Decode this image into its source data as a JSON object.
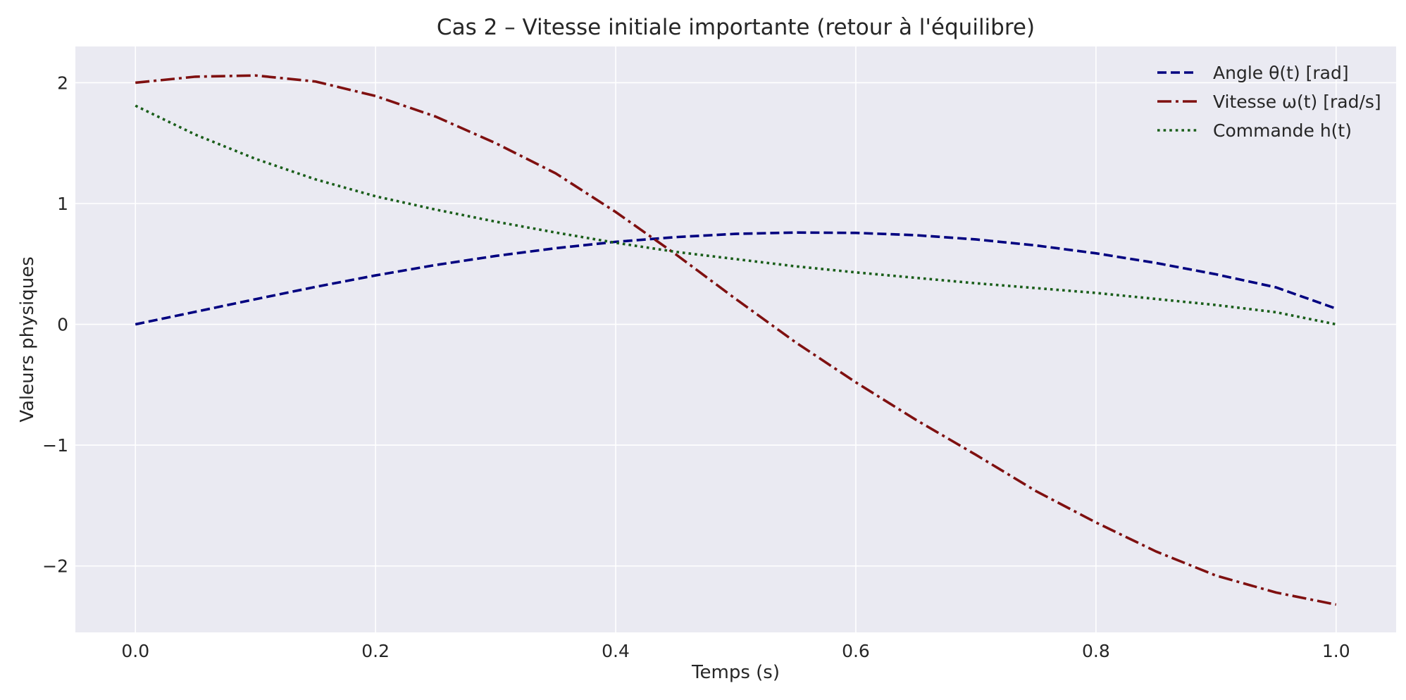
{
  "chart_data": {
    "type": "line",
    "title": "Cas 2 – Vitesse initiale importante (retour à l'équilibre)",
    "xlabel": "Temps (s)",
    "ylabel": "Valeurs physiques",
    "xlim": [
      -0.05,
      1.05
    ],
    "ylim": [
      -2.55,
      2.3
    ],
    "xticks": [
      0.0,
      0.2,
      0.4,
      0.6,
      0.8,
      1.0
    ],
    "xtick_labels": [
      "0.0",
      "0.2",
      "0.4",
      "0.6",
      "0.8",
      "1.0"
    ],
    "yticks": [
      -2,
      -1,
      0,
      1,
      2
    ],
    "ytick_labels": [
      "−2",
      "−1",
      "0",
      "1",
      "2"
    ],
    "grid": true,
    "legend_position": "top-right",
    "x": [
      0.0,
      0.05,
      0.1,
      0.15,
      0.2,
      0.25,
      0.3,
      0.35,
      0.4,
      0.45,
      0.5,
      0.55,
      0.6,
      0.65,
      0.7,
      0.75,
      0.8,
      0.85,
      0.9,
      0.95,
      1.0
    ],
    "series": [
      {
        "name": "Angle θ(t) [rad]",
        "color": "#000080",
        "dash": "dashed",
        "values": [
          0.0,
          0.104,
          0.208,
          0.31,
          0.405,
          0.491,
          0.566,
          0.63,
          0.683,
          0.722,
          0.749,
          0.76,
          0.757,
          0.738,
          0.703,
          0.653,
          0.588,
          0.508,
          0.414,
          0.306,
          0.13
        ]
      },
      {
        "name": "Vitesse ω(t) [rad/s]",
        "color": "#7f1010",
        "dash": "dashdot",
        "values": [
          2.0,
          2.05,
          2.06,
          2.01,
          1.89,
          1.72,
          1.5,
          1.25,
          0.93,
          0.58,
          0.21,
          -0.15,
          -0.48,
          -0.79,
          -1.08,
          -1.38,
          -1.64,
          -1.88,
          -2.08,
          -2.22,
          -2.32
        ]
      },
      {
        "name": "Commande h(t)",
        "color": "#1a5e1a",
        "dash": "dotted",
        "values": [
          1.81,
          1.57,
          1.37,
          1.2,
          1.06,
          0.95,
          0.85,
          0.76,
          0.675,
          0.6,
          0.54,
          0.48,
          0.43,
          0.385,
          0.34,
          0.3,
          0.26,
          0.21,
          0.16,
          0.1,
          0.0
        ]
      }
    ]
  }
}
